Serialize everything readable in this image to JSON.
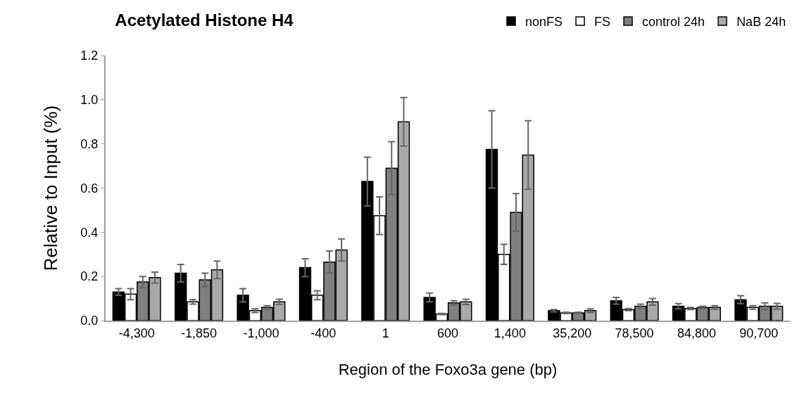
{
  "chart_data": {
    "type": "bar",
    "title": "Acetylated Histone H4",
    "xlabel": "Region of the Foxo3a gene (bp)",
    "ylabel": "Relative to Input (%)",
    "categories": [
      "-4,300",
      "-1,850",
      "-1,000",
      "-400",
      "1",
      "600",
      "1,400",
      "35,200",
      "78,500",
      "84,800",
      "90,700"
    ],
    "series": [
      {
        "name": "nonFS",
        "color": "#000000",
        "values": [
          0.13,
          0.215,
          0.115,
          0.24,
          0.63,
          0.105,
          0.775,
          0.045,
          0.09,
          0.065,
          0.095
        ],
        "errors": [
          0.015,
          0.04,
          0.03,
          0.04,
          0.11,
          0.02,
          0.175,
          0.005,
          0.015,
          0.012,
          0.018
        ]
      },
      {
        "name": "FS",
        "color": "#ffffff",
        "values": [
          0.12,
          0.085,
          0.045,
          0.115,
          0.475,
          0.03,
          0.3,
          0.035,
          0.05,
          0.055,
          0.06
        ],
        "errors": [
          0.025,
          0.01,
          0.008,
          0.02,
          0.085,
          0.003,
          0.045,
          0.003,
          0.005,
          0.005,
          0.008
        ]
      },
      {
        "name": "control 24h",
        "color": "#808080",
        "values": [
          0.175,
          0.185,
          0.06,
          0.265,
          0.69,
          0.08,
          0.49,
          0.035,
          0.065,
          0.06,
          0.065
        ],
        "errors": [
          0.025,
          0.03,
          0.008,
          0.05,
          0.12,
          0.01,
          0.085,
          0.003,
          0.01,
          0.005,
          0.015
        ]
      },
      {
        "name": "NaB 24h",
        "color": "#a9a9a9",
        "values": [
          0.195,
          0.23,
          0.085,
          0.32,
          0.9,
          0.085,
          0.75,
          0.045,
          0.085,
          0.06,
          0.065
        ],
        "errors": [
          0.025,
          0.04,
          0.012,
          0.05,
          0.11,
          0.012,
          0.155,
          0.008,
          0.015,
          0.008,
          0.013
        ]
      }
    ],
    "ylim": [
      0,
      1.2
    ],
    "yticks": [
      {
        "value": 0,
        "label": "0.0"
      },
      {
        "value": 0.2,
        "label": "0.2"
      },
      {
        "value": 0.4,
        "label": "0.4"
      },
      {
        "value": 0.6,
        "label": "0.6"
      },
      {
        "value": 0.8,
        "label": "0.8"
      },
      {
        "value": 1.0,
        "label": "1.0"
      },
      {
        "value": 1.2,
        "label": "1.2"
      }
    ],
    "legend": "top right"
  }
}
